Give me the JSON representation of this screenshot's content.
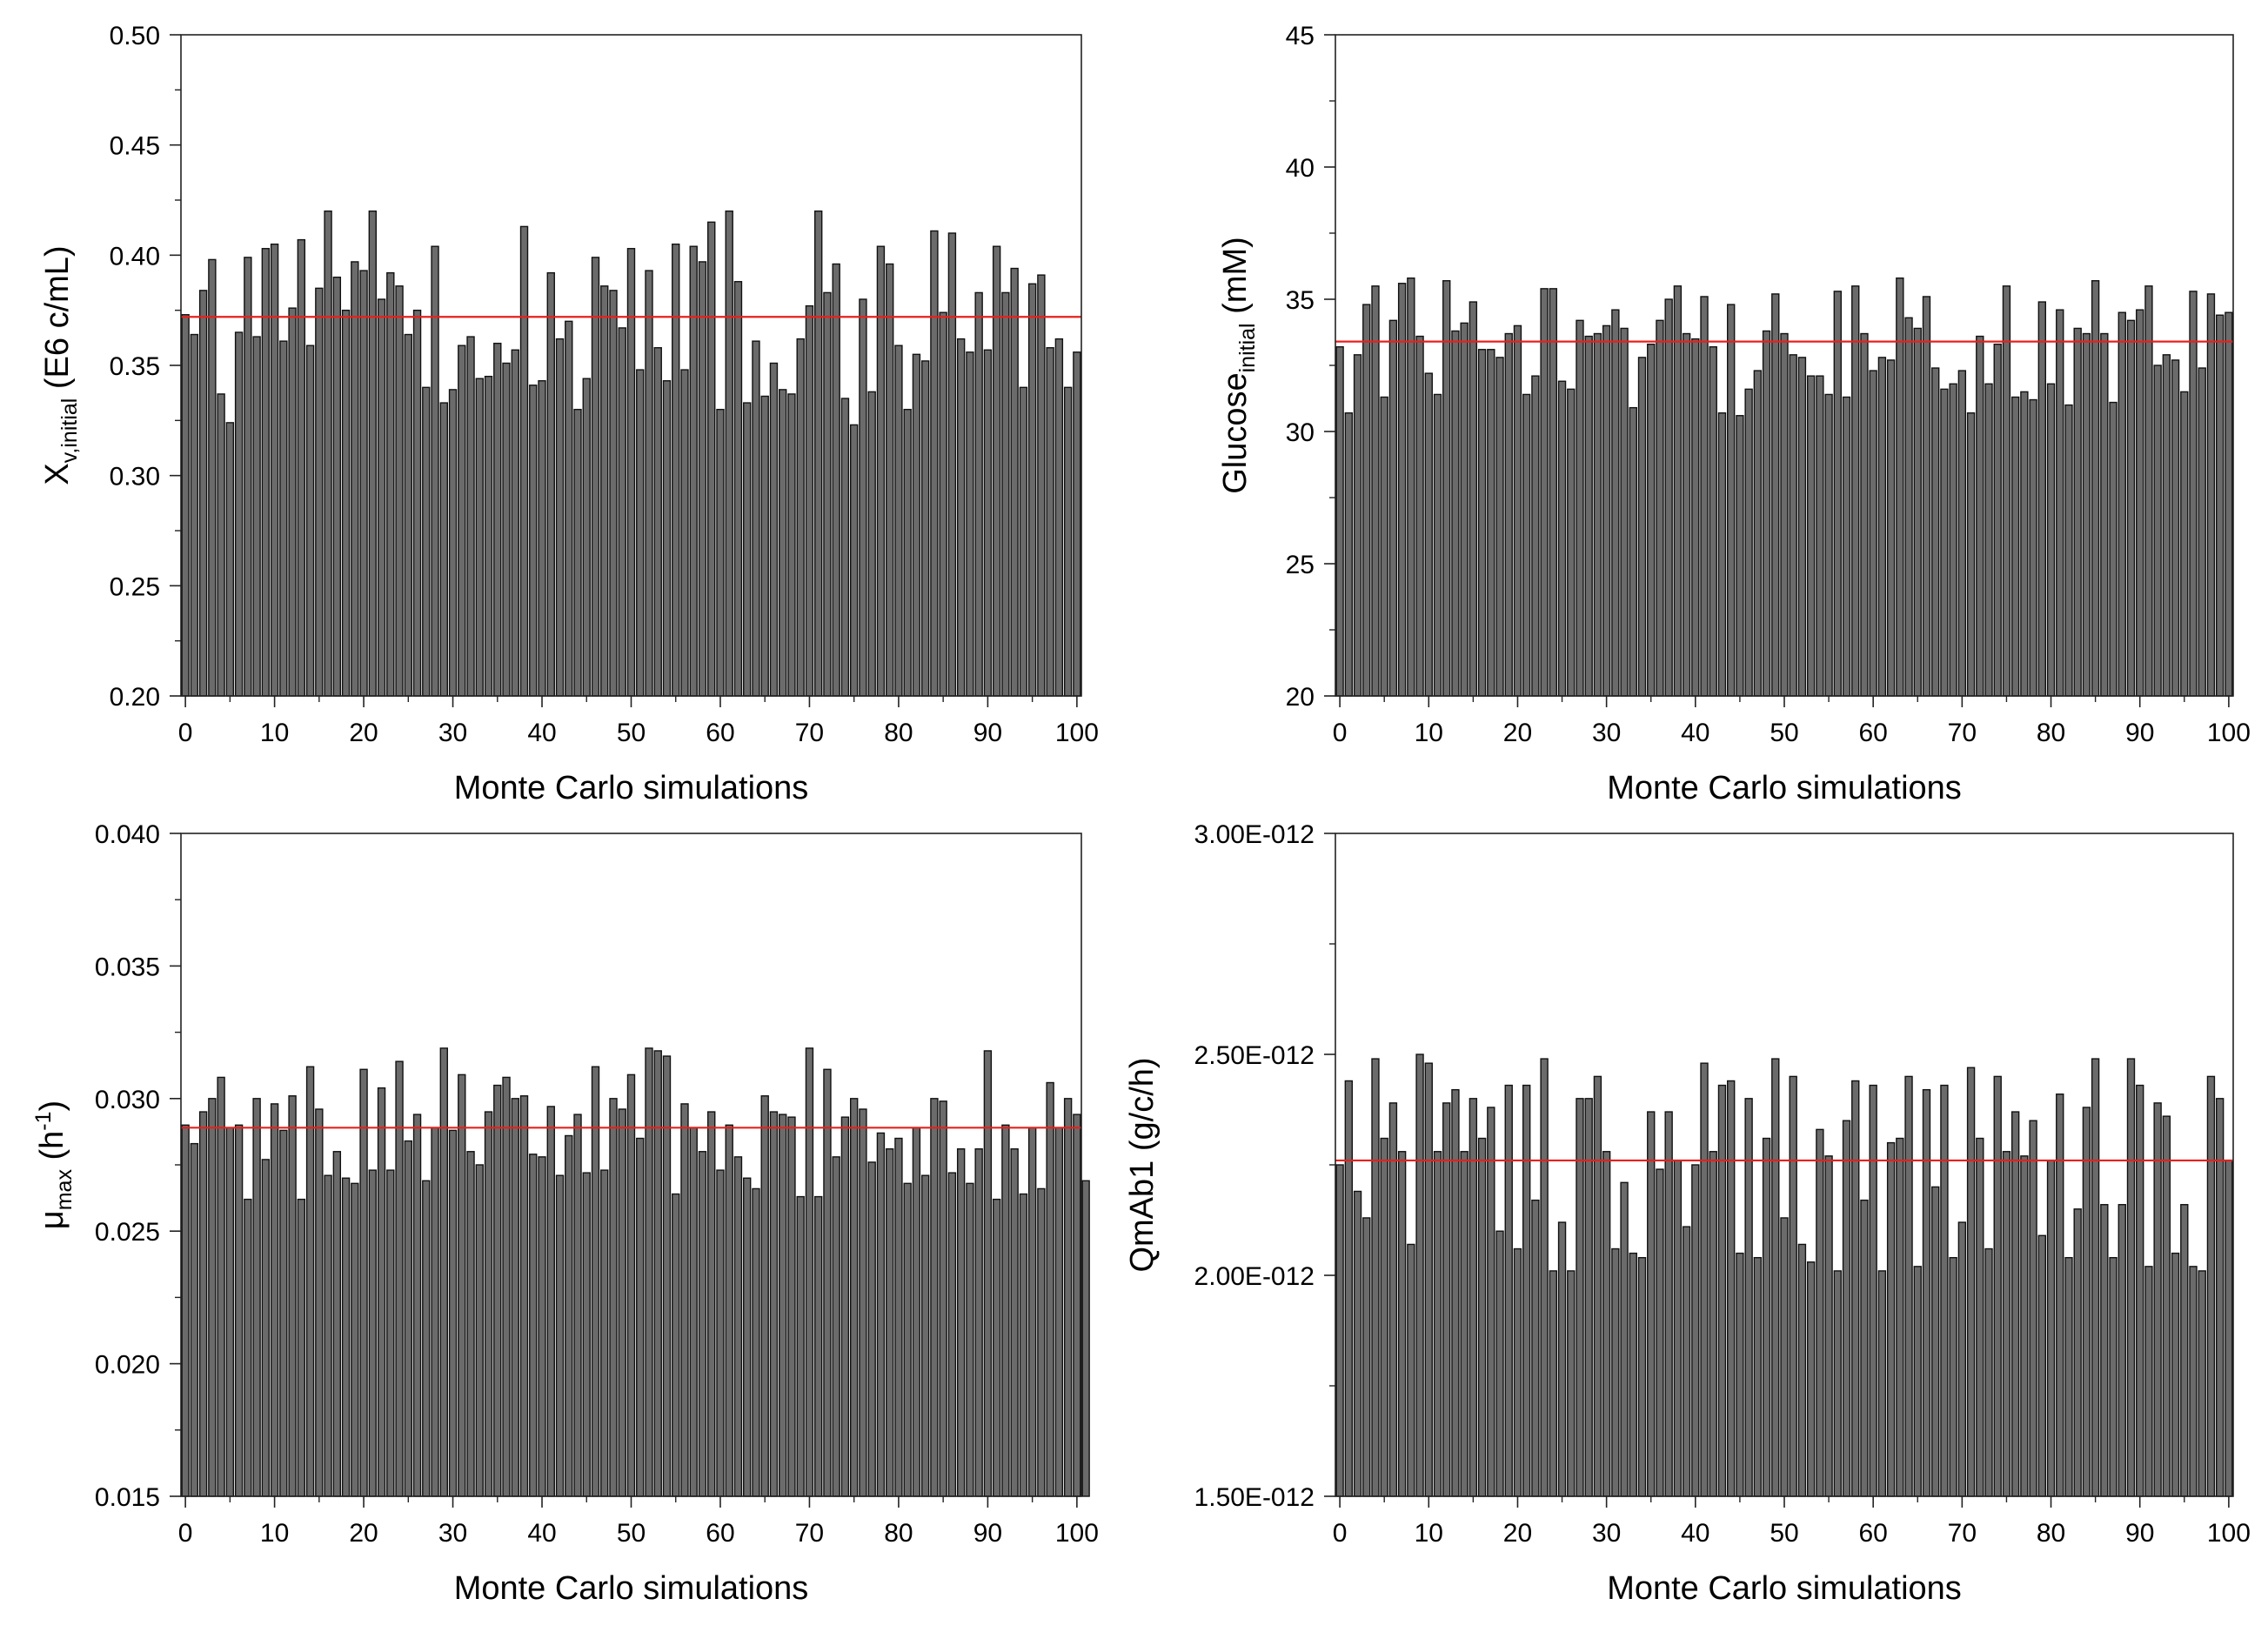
{
  "chart_data": [
    {
      "id": "xv",
      "type": "bar",
      "xlabel": "Monte Carlo simulations",
      "ylabel": {
        "main": "X",
        "sub": "v,initial",
        "rest": " (E6 c/mL)"
      },
      "xlim": [
        0,
        100
      ],
      "ylim": [
        0.2,
        0.5
      ],
      "xticks": [
        0,
        10,
        20,
        30,
        40,
        50,
        60,
        70,
        80,
        90,
        100
      ],
      "xtick_labels": [
        "0",
        "10",
        "20",
        "30",
        "40",
        "50",
        "60",
        "70",
        "80",
        "90",
        "100"
      ],
      "yticks": [
        0.2,
        0.25,
        0.3,
        0.35,
        0.4,
        0.45,
        0.5
      ],
      "ytick_labels": [
        "0.20",
        "0.25",
        "0.30",
        "0.35",
        "0.40",
        "0.45",
        "0.50"
      ],
      "reference_line": 0.372,
      "reference_color": "#e8201c",
      "bar_color": "#6b6b6b",
      "values": [
        0.373,
        0.364,
        0.384,
        0.398,
        0.337,
        0.324,
        0.365,
        0.399,
        0.363,
        0.403,
        0.405,
        0.361,
        0.376,
        0.407,
        0.359,
        0.385,
        0.42,
        0.39,
        0.375,
        0.397,
        0.393,
        0.42,
        0.38,
        0.392,
        0.386,
        0.364,
        0.375,
        0.34,
        0.404,
        0.333,
        0.339,
        0.359,
        0.363,
        0.344,
        0.345,
        0.36,
        0.351,
        0.357,
        0.413,
        0.341,
        0.343,
        0.392,
        0.362,
        0.37,
        0.33,
        0.344,
        0.399,
        0.386,
        0.384,
        0.367,
        0.403,
        0.348,
        0.393,
        0.358,
        0.343,
        0.405,
        0.348,
        0.404,
        0.397,
        0.415,
        0.33,
        0.42,
        0.388,
        0.333,
        0.361,
        0.336,
        0.351,
        0.339,
        0.337,
        0.362,
        0.377,
        0.42,
        0.383,
        0.396,
        0.335,
        0.323,
        0.38,
        0.338,
        0.404,
        0.396,
        0.359,
        0.33,
        0.355,
        0.352,
        0.411,
        0.374,
        0.41,
        0.362,
        0.356,
        0.383,
        0.357,
        0.404,
        0.383,
        0.394,
        0.34,
        0.387,
        0.391,
        0.358,
        0.362,
        0.34,
        0.356
      ]
    },
    {
      "id": "glucose",
      "type": "bar",
      "xlabel": "Monte Carlo simulations",
      "ylabel": {
        "main": "Glucose",
        "sub": "initial",
        "rest": " (mM)"
      },
      "xlim": [
        0,
        100
      ],
      "ylim": [
        20,
        45
      ],
      "xticks": [
        0,
        10,
        20,
        30,
        40,
        50,
        60,
        70,
        80,
        90,
        100
      ],
      "xtick_labels": [
        "0",
        "10",
        "20",
        "30",
        "40",
        "50",
        "60",
        "70",
        "80",
        "90",
        "100"
      ],
      "yticks": [
        20,
        25,
        30,
        35,
        40,
        45
      ],
      "ytick_labels": [
        "20",
        "25",
        "30",
        "35",
        "40",
        "45"
      ],
      "reference_line": 33.4,
      "reference_color": "#e8201c",
      "bar_color": "#6b6b6b",
      "values": [
        33.2,
        30.7,
        32.9,
        34.8,
        35.5,
        31.3,
        34.2,
        35.6,
        35.8,
        33.6,
        32.2,
        31.4,
        35.7,
        33.8,
        34.1,
        34.9,
        33.1,
        33.1,
        32.8,
        33.7,
        34.0,
        31.4,
        32.1,
        35.4,
        35.4,
        31.9,
        31.6,
        34.2,
        33.6,
        33.7,
        34.0,
        34.6,
        33.9,
        30.9,
        32.8,
        33.3,
        34.2,
        35.0,
        35.5,
        33.7,
        33.5,
        35.1,
        33.2,
        30.7,
        34.8,
        30.6,
        31.6,
        32.3,
        33.8,
        35.2,
        33.7,
        32.9,
        32.8,
        32.1,
        32.1,
        31.4,
        35.3,
        31.3,
        35.5,
        33.7,
        32.3,
        32.8,
        32.7,
        35.8,
        34.3,
        33.9,
        35.1,
        32.4,
        31.6,
        31.8,
        32.3,
        30.7,
        33.6,
        31.8,
        33.3,
        35.5,
        31.3,
        31.5,
        31.2,
        34.9,
        31.8,
        34.6,
        31.0,
        33.9,
        33.7,
        35.7,
        33.7,
        31.1,
        34.5,
        34.2,
        34.6,
        35.5,
        32.5,
        32.9,
        32.7,
        31.5,
        35.3,
        32.4,
        35.2,
        34.4,
        34.5
      ]
    },
    {
      "id": "mumax",
      "type": "bar",
      "xlabel": "Monte Carlo simulations",
      "ylabel": {
        "main": "μ",
        "sub": "max",
        "rest": " (h",
        "sup": "-1",
        "close": ")"
      },
      "xlim": [
        0,
        100
      ],
      "ylim": [
        0.015,
        0.04
      ],
      "xticks": [
        0,
        10,
        20,
        30,
        40,
        50,
        60,
        70,
        80,
        90,
        100
      ],
      "xtick_labels": [
        "0",
        "10",
        "20",
        "30",
        "40",
        "50",
        "60",
        "70",
        "80",
        "90",
        "100"
      ],
      "yticks": [
        0.015,
        0.02,
        0.025,
        0.03,
        0.035,
        0.04
      ],
      "ytick_labels": [
        "0.015",
        "0.020",
        "0.025",
        "0.030",
        "0.035",
        "0.040"
      ],
      "reference_line": 0.0289,
      "reference_color": "#e8201c",
      "bar_color": "#6b6b6b",
      "values": [
        0.029,
        0.0283,
        0.0295,
        0.03,
        0.0308,
        0.0289,
        0.029,
        0.0262,
        0.03,
        0.0277,
        0.0298,
        0.0288,
        0.0301,
        0.0262,
        0.0312,
        0.0296,
        0.0271,
        0.028,
        0.027,
        0.0268,
        0.0311,
        0.0273,
        0.0304,
        0.0273,
        0.0314,
        0.0284,
        0.0294,
        0.0269,
        0.0289,
        0.0319,
        0.0288,
        0.0309,
        0.028,
        0.0275,
        0.0295,
        0.0305,
        0.0308,
        0.03,
        0.0301,
        0.0279,
        0.0278,
        0.0297,
        0.0271,
        0.0286,
        0.0294,
        0.0272,
        0.0312,
        0.0273,
        0.03,
        0.0296,
        0.0309,
        0.0285,
        0.0319,
        0.0318,
        0.0316,
        0.0264,
        0.0298,
        0.0289,
        0.028,
        0.0295,
        0.0273,
        0.029,
        0.0278,
        0.027,
        0.0266,
        0.0301,
        0.0295,
        0.0294,
        0.0293,
        0.0263,
        0.0319,
        0.0263,
        0.0311,
        0.0278,
        0.0293,
        0.03,
        0.0296,
        0.0276,
        0.0287,
        0.0281,
        0.0285,
        0.0268,
        0.0289,
        0.0271,
        0.03,
        0.0299,
        0.0272,
        0.0281,
        0.0268,
        0.0281,
        0.0318,
        0.0262,
        0.029,
        0.0281,
        0.0264,
        0.0289,
        0.0266,
        0.0306,
        0.0289,
        0.03,
        0.0294,
        0.0269
      ]
    },
    {
      "id": "qmab",
      "type": "bar",
      "xlabel": "Monte Carlo simulations",
      "ylabel": {
        "main": "QmAb1 (g/c/h)"
      },
      "xlim": [
        0,
        100
      ],
      "ylim": [
        1.5e-12,
        3e-12
      ],
      "xticks": [
        0,
        10,
        20,
        30,
        40,
        50,
        60,
        70,
        80,
        90,
        100
      ],
      "xtick_labels": [
        "0",
        "10",
        "20",
        "30",
        "40",
        "50",
        "60",
        "70",
        "80",
        "90",
        "100"
      ],
      "yticks": [
        1.5e-12,
        2e-12,
        2.5e-12,
        3e-12
      ],
      "ytick_labels": [
        "1.50E-012",
        "2.00E-012",
        "2.50E-012",
        "3.00E-012"
      ],
      "reference_line": 2.26e-12,
      "reference_color": "#e8201c",
      "bar_color": "#6b6b6b",
      "values": [
        2.25e-12,
        2.44e-12,
        2.19e-12,
        2.13e-12,
        2.49e-12,
        2.31e-12,
        2.39e-12,
        2.28e-12,
        2.07e-12,
        2.5e-12,
        2.48e-12,
        2.28e-12,
        2.39e-12,
        2.42e-12,
        2.28e-12,
        2.4e-12,
        2.31e-12,
        2.38e-12,
        2.1e-12,
        2.43e-12,
        2.06e-12,
        2.43e-12,
        2.17e-12,
        2.49e-12,
        2.01e-12,
        2.12e-12,
        2.01e-12,
        2.4e-12,
        2.4e-12,
        2.45e-12,
        2.28e-12,
        2.06e-12,
        2.21e-12,
        2.05e-12,
        2.04e-12,
        2.37e-12,
        2.24e-12,
        2.37e-12,
        2.26e-12,
        2.11e-12,
        2.25e-12,
        2.48e-12,
        2.28e-12,
        2.43e-12,
        2.44e-12,
        2.05e-12,
        2.4e-12,
        2.04e-12,
        2.31e-12,
        2.49e-12,
        2.13e-12,
        2.45e-12,
        2.07e-12,
        2.03e-12,
        2.33e-12,
        2.27e-12,
        2.01e-12,
        2.35e-12,
        2.44e-12,
        2.17e-12,
        2.43e-12,
        2.01e-12,
        2.3e-12,
        2.31e-12,
        2.45e-12,
        2.02e-12,
        2.42e-12,
        2.2e-12,
        2.43e-12,
        2.04e-12,
        2.12e-12,
        2.47e-12,
        2.31e-12,
        2.06e-12,
        2.45e-12,
        2.28e-12,
        2.37e-12,
        2.27e-12,
        2.35e-12,
        2.09e-12,
        2.26e-12,
        2.41e-12,
        2.04e-12,
        2.15e-12,
        2.38e-12,
        2.49e-12,
        2.16e-12,
        2.04e-12,
        2.16e-12,
        2.49e-12,
        2.43e-12,
        2.02e-12,
        2.39e-12,
        2.36e-12,
        2.05e-12,
        2.16e-12,
        2.02e-12,
        2.01e-12,
        2.45e-12,
        2.4e-12,
        2.26e-12
      ]
    }
  ]
}
